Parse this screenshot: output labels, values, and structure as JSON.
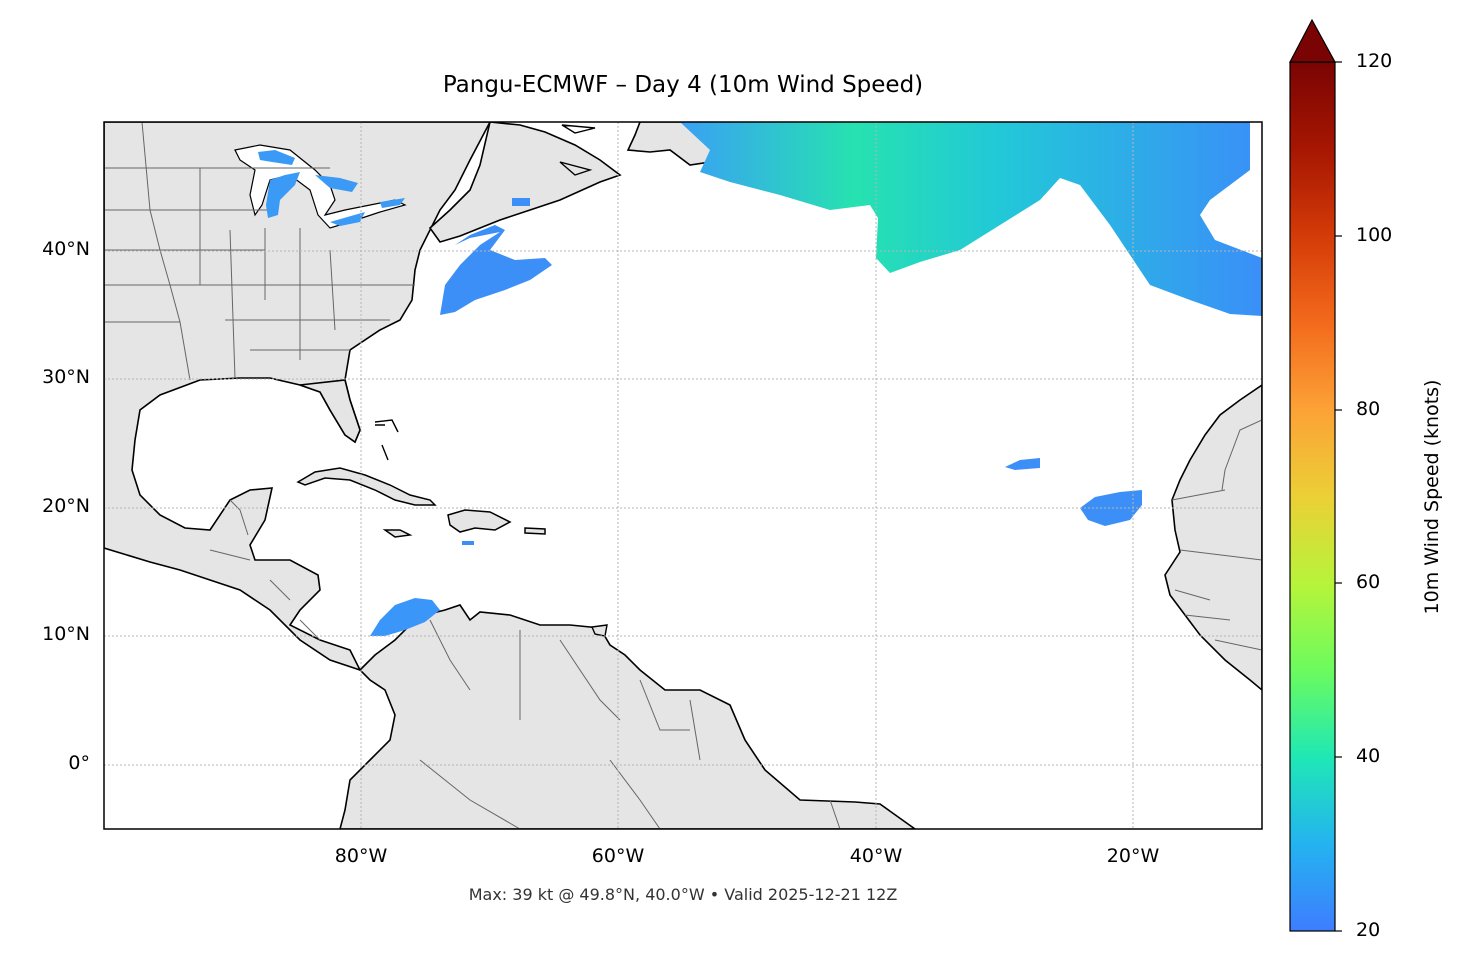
{
  "title": "Pangu-ECMWF – Day 4 (10m Wind Speed)",
  "footer": "Max: 39 kt @ 49.8°N, 40.0°W • Valid 2025-12-21 12Z",
  "map": {
    "extent_lon": [
      -100,
      -10
    ],
    "extent_lat": [
      -5,
      50
    ],
    "x_ticks": [
      "80°W",
      "60°W",
      "40°W",
      "20°W"
    ],
    "y_ticks": [
      "40°N",
      "30°N",
      "20°N",
      "10°N",
      "0°"
    ],
    "gridlines": true,
    "land_color": "#e5e5e5",
    "coast_color": "#000000",
    "border_color": "#666666"
  },
  "colorbar": {
    "label": "10m Wind Speed (knots)",
    "ticks": [
      "20",
      "40",
      "60",
      "80",
      "100",
      "120"
    ],
    "range": [
      20,
      120
    ],
    "extend": "max",
    "colormap": "turbo"
  },
  "wind_features": [
    {
      "name": "north-atlantic-jet",
      "max_kt": 39
    },
    {
      "name": "eastern-atlantic-band",
      "max_kt": 28
    },
    {
      "name": "us-east-coast-patch",
      "max_kt": 23
    },
    {
      "name": "great-lakes-patches",
      "max_kt": 22
    },
    {
      "name": "caribbean-jet-patch",
      "max_kt": 23
    },
    {
      "name": "central-atlantic-small-patch",
      "max_kt": 22
    },
    {
      "name": "cape-verde-patch",
      "max_kt": 22
    }
  ]
}
